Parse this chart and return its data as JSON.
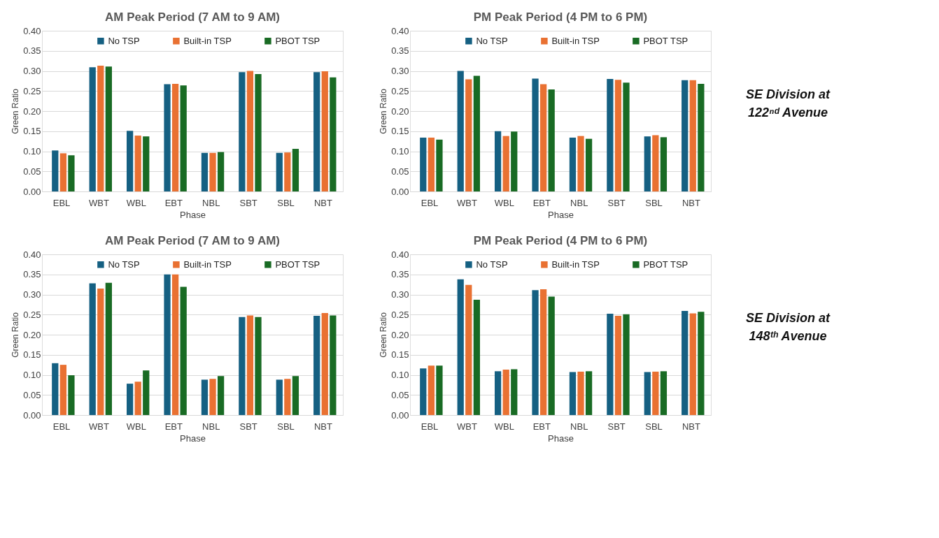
{
  "chart_data": [
    {
      "type": "bar",
      "title": "AM Peak Period (7 AM to 9 AM)",
      "xlabel": "Phase",
      "ylabel": "Green Ratio",
      "categories": [
        "EBL",
        "WBT",
        "WBL",
        "EBT",
        "NBL",
        "SBT",
        "SBL",
        "NBT"
      ],
      "series": [
        {
          "name": "No TSP",
          "color": "#156082",
          "values": [
            0.102,
            0.309,
            0.151,
            0.267,
            0.096,
            0.297,
            0.096,
            0.297
          ]
        },
        {
          "name": "Built-in TSP",
          "color": "#e97132",
          "values": [
            0.095,
            0.313,
            0.139,
            0.268,
            0.096,
            0.3,
            0.097,
            0.299
          ]
        },
        {
          "name": "PBOT TSP",
          "color": "#196b24",
          "values": [
            0.09,
            0.311,
            0.137,
            0.264,
            0.098,
            0.292,
            0.106,
            0.284
          ]
        }
      ],
      "ylim": [
        0,
        0.4
      ],
      "yticks": [
        {
          "value": 0,
          "label": "0.00"
        },
        0.05,
        {
          "value": 0.1,
          "label": "0.10"
        },
        0.15,
        {
          "value": 0.2,
          "label": "0.20"
        },
        0.25,
        {
          "value": 0.3,
          "label": "0.30"
        },
        0.35,
        {
          "value": 0.4,
          "label": "0.40"
        }
      ],
      "grid": "y",
      "legend": "top"
    },
    {
      "type": "bar",
      "title": "PM Peak Period (4 PM to 6 PM)",
      "xlabel": "Phase",
      "ylabel": "Green Ratio",
      "categories": [
        "EBL",
        "WBT",
        "WBL",
        "EBT",
        "NBL",
        "SBT",
        "SBL",
        "NBT"
      ],
      "series": [
        {
          "name": "No TSP",
          "color": "#156082",
          "values": [
            0.134,
            0.3,
            0.15,
            0.281,
            0.134,
            0.28,
            0.137,
            0.277
          ]
        },
        {
          "name": "Built-in TSP",
          "color": "#e97132",
          "values": [
            0.134,
            0.279,
            0.138,
            0.267,
            0.138,
            0.278,
            0.14,
            0.277
          ]
        },
        {
          "name": "PBOT TSP",
          "color": "#196b24",
          "values": [
            0.129,
            0.288,
            0.149,
            0.254,
            0.131,
            0.271,
            0.135,
            0.268
          ]
        }
      ],
      "ylim": [
        0,
        0.4
      ],
      "yticks": [
        {
          "value": 0,
          "label": "0.00"
        },
        0.05,
        {
          "value": 0.1,
          "label": "0.10"
        },
        0.15,
        {
          "value": 0.2,
          "label": "0.20"
        },
        0.25,
        {
          "value": 0.3,
          "label": "0.30"
        },
        0.35,
        {
          "value": 0.4,
          "label": "0.40"
        }
      ],
      "grid": "y",
      "legend": "top",
      "annotations": [
        "SE Division at 122ⁿᵈ Avenue"
      ]
    },
    {
      "type": "bar",
      "title": "AM Peak Period (7 AM to 9 AM)",
      "xlabel": "Phase",
      "ylabel": "Green Ratio",
      "categories": [
        "EBL",
        "WBT",
        "WBL",
        "EBT",
        "NBL",
        "SBT",
        "SBL",
        "NBT"
      ],
      "series": [
        {
          "name": "No TSP",
          "color": "#156082",
          "values": [
            0.129,
            0.328,
            0.078,
            0.35,
            0.088,
            0.244,
            0.088,
            0.247
          ]
        },
        {
          "name": "Built-in TSP",
          "color": "#e97132",
          "values": [
            0.125,
            0.315,
            0.083,
            0.35,
            0.09,
            0.248,
            0.09,
            0.254
          ]
        },
        {
          "name": "PBOT TSP",
          "color": "#196b24",
          "values": [
            0.099,
            0.329,
            0.111,
            0.319,
            0.097,
            0.244,
            0.097,
            0.248
          ]
        }
      ],
      "ylim": [
        0,
        0.4
      ],
      "yticks": [
        {
          "value": 0,
          "label": "0.00"
        },
        0.05,
        {
          "value": 0.1,
          "label": "0.10"
        },
        0.15,
        {
          "value": 0.2,
          "label": "0.20"
        },
        0.25,
        {
          "value": 0.3,
          "label": "0.30"
        },
        0.35,
        {
          "value": 0.4,
          "label": "0.40"
        }
      ],
      "grid": "y",
      "legend": "top"
    },
    {
      "type": "bar",
      "title": "PM Peak Period (4 PM to 6 PM)",
      "xlabel": "Phase",
      "ylabel": "Green Ratio",
      "categories": [
        "EBL",
        "WBT",
        "WBL",
        "EBT",
        "NBL",
        "SBT",
        "SBL",
        "NBT"
      ],
      "series": [
        {
          "name": "No TSP",
          "color": "#156082",
          "values": [
            0.116,
            0.338,
            0.109,
            0.311,
            0.107,
            0.252,
            0.107,
            0.259
          ]
        },
        {
          "name": "Built-in TSP",
          "color": "#e97132",
          "values": [
            0.123,
            0.324,
            0.113,
            0.313,
            0.108,
            0.247,
            0.108,
            0.253
          ]
        },
        {
          "name": "PBOT TSP",
          "color": "#196b24",
          "values": [
            0.123,
            0.287,
            0.114,
            0.295,
            0.109,
            0.251,
            0.109,
            0.257
          ]
        }
      ],
      "ylim": [
        0,
        0.4
      ],
      "yticks": [
        {
          "value": 0,
          "label": "0.00"
        },
        0.05,
        {
          "value": 0.1,
          "label": "0.10"
        },
        0.15,
        {
          "value": 0.2,
          "label": "0.20"
        },
        0.25,
        {
          "value": 0.3,
          "label": "0.30"
        },
        0.35,
        {
          "value": 0.4,
          "label": "0.40"
        }
      ],
      "grid": "y",
      "legend": "top",
      "annotations": [
        "SE Division at 148ᵗʰ Avenue"
      ]
    }
  ]
}
